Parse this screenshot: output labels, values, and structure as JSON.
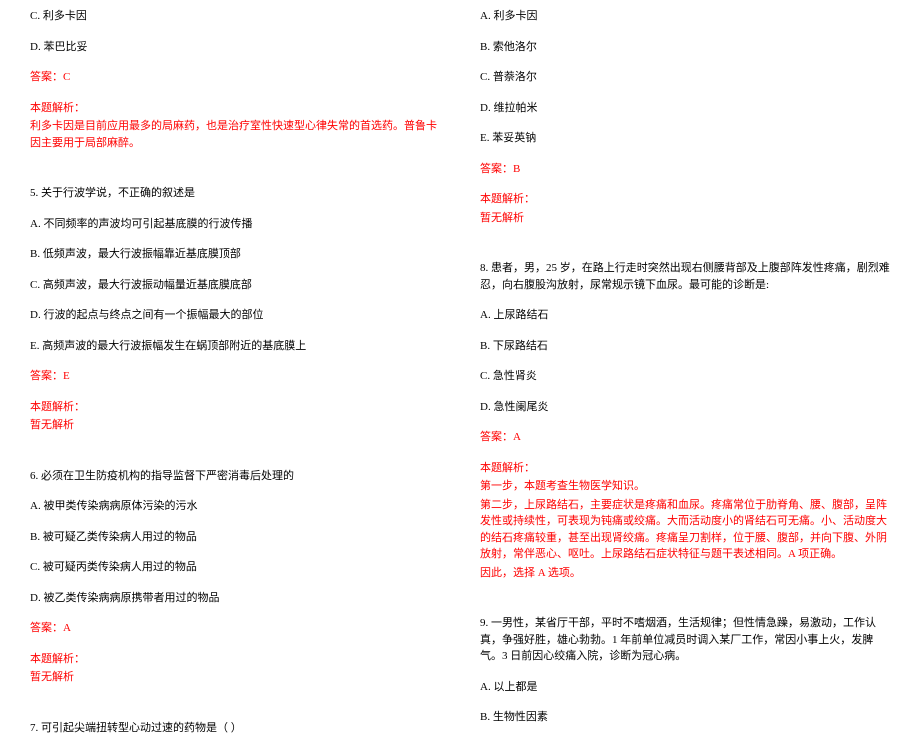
{
  "left": {
    "q4_c": "C. 利多卡因",
    "q4_d": "D. 苯巴比妥",
    "q4_answer": "答案：C",
    "q4_analysis_label": "本题解析：",
    "q4_analysis": "利多卡因是目前应用最多的局麻药，也是治疗室性快速型心律失常的首选药。普鲁卡因主要用于局部麻醉。",
    "q5_stem": "5. 关于行波学说，不正确的叙述是",
    "q5_a": "A. 不同频率的声波均可引起基底膜的行波传播",
    "q5_b": "B. 低频声波，最大行波振幅靠近基底膜顶部",
    "q5_c": "C. 高频声波，最大行波振动幅量近基底膜底部",
    "q5_d": "D. 行波的起点与终点之间有一个振幅最大的部位",
    "q5_e": "E. 高频声波的最大行波振幅发生在蜗顶部附近的基底膜上",
    "q5_answer": "答案：E",
    "q5_analysis_label": "本题解析：",
    "q5_analysis": "暂无解析",
    "q6_stem": "6. 必须在卫生防疫机构的指导监督下严密消毒后处理的",
    "q6_a": "A. 被甲类传染病病原体污染的污水",
    "q6_b": "B. 被可疑乙类传染病人用过的物品",
    "q6_c": "C. 被可疑丙类传染病人用过的物品",
    "q6_d": "D. 被乙类传染病病原携带者用过的物品",
    "q6_answer": "答案：A",
    "q6_analysis_label": "本题解析：",
    "q6_analysis": "暂无解析",
    "q7_stem": "7. 可引起尖端扭转型心动过速的药物是（  ）"
  },
  "right": {
    "q7_a": "A. 利多卡因",
    "q7_b": "B. 索他洛尔",
    "q7_c": "C. 普萘洛尔",
    "q7_d": "D. 维拉帕米",
    "q7_e": "E. 苯妥英钠",
    "q7_answer": "答案：B",
    "q7_analysis_label": "本题解析：",
    "q7_analysis": "暂无解析",
    "q8_stem": "8. 患者，男，25 岁，在路上行走时突然出现右侧腰背部及上腹部阵发性疼痛，剧烈难忍，向右腹股沟放射，尿常规示镜下血尿。最可能的诊断是:",
    "q8_a": "A. 上尿路结石",
    "q8_b": "B. 下尿路结石",
    "q8_c": "C. 急性肾炎",
    "q8_d": "D. 急性阑尾炎",
    "q8_answer": "答案：A",
    "q8_analysis_label": "本题解析：",
    "q8_analysis_1": "第一步，本题考查生物医学知识。",
    "q8_analysis_2": "第二步，上尿路结石，主要症状是疼痛和血尿。疼痛常位于肋脊角、腰、腹部，呈阵发性或持续性，可表现为钝痛或绞痛。大而活动度小的肾结石可无痛。小、活动度大的结石疼痛较重，甚至出现肾绞痛。疼痛呈刀割样，位于腰、腹部，并向下腹、外阴放射，常伴恶心、呕吐。上尿路结石症状特征与题干表述相同。A 项正确。",
    "q8_analysis_3": "因此，选择 A 选项。",
    "q9_stem": "9. 一男性，某省厅干部，平时不嗜烟酒，生活规律；但性情急躁，易激动，工作认真，争强好胜，雄心勃勃。1 年前单位减员时调入某厂工作，常因小事上火，发脾气。3 日前因心绞痛入院，诊断为冠心病。",
    "q9_a": "A. 以上都是",
    "q9_b": "B. 生物性因素"
  }
}
